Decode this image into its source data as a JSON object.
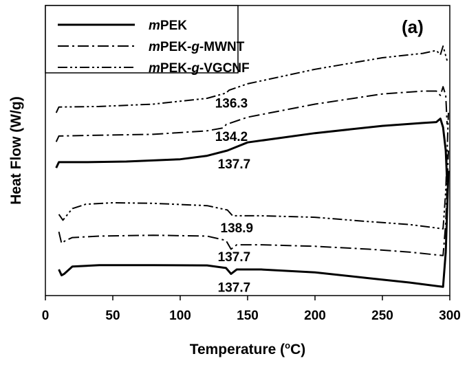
{
  "chart_data": {
    "type": "line",
    "panel_label": "(a)",
    "xlabel": "Temperature (",
    "xlabel_sup": "o",
    "xlabel_suffix": "C)",
    "ylabel": "Heat Flow (W/g)",
    "xlim": [
      0,
      300
    ],
    "xticks": [
      0,
      50,
      100,
      150,
      200,
      250,
      300
    ],
    "yticks_shown": false,
    "ylim": [
      0,
      10
    ],
    "legend": {
      "position": "top-left",
      "entries": [
        {
          "italic": "m",
          "text": "PEK",
          "style": "solid"
        },
        {
          "italic": "m",
          "text": "PEK-",
          "italic2": "g",
          "text2": "-MWNT",
          "style": "dash-dot"
        },
        {
          "italic": "m",
          "text": "PEK-",
          "italic2": "g",
          "text2": "-VGCNF",
          "style": "dash-dot-dot"
        }
      ]
    },
    "series": [
      {
        "legend_index": 0,
        "segment": "heating",
        "x": [
          8,
          10,
          30,
          60,
          100,
          120,
          135,
          137.7,
          150,
          200,
          250,
          280,
          290,
          293,
          295,
          297,
          298
        ],
        "y": [
          4.4,
          4.6,
          4.6,
          4.62,
          4.7,
          4.82,
          5.0,
          5.05,
          5.28,
          5.6,
          5.85,
          5.95,
          5.98,
          6.1,
          5.8,
          5.0,
          3.9
        ]
      },
      {
        "legend_index": 1,
        "segment": "heating",
        "x": [
          8,
          10,
          30,
          80,
          120,
          132,
          134.2,
          150,
          200,
          250,
          280,
          290,
          293,
          295,
          297,
          298
        ],
        "y": [
          5.3,
          5.5,
          5.52,
          5.56,
          5.68,
          5.78,
          5.9,
          6.15,
          6.6,
          6.95,
          7.05,
          7.05,
          6.9,
          7.2,
          6.9,
          5.9
        ]
      },
      {
        "legend_index": 2,
        "segment": "heating",
        "x": [
          8,
          10,
          40,
          80,
          120,
          134,
          136.3,
          150,
          200,
          250,
          280,
          290,
          293,
          295,
          298
        ],
        "y": [
          6.3,
          6.5,
          6.52,
          6.6,
          6.8,
          6.98,
          7.08,
          7.3,
          7.8,
          8.2,
          8.35,
          8.45,
          8.3,
          8.6,
          8.1
        ]
      },
      {
        "legend_index": 0,
        "segment": "cooling",
        "x": [
          10,
          12,
          14,
          20,
          40,
          80,
          120,
          134,
          137.7,
          142,
          160,
          200,
          240,
          270,
          295,
          297,
          299
        ],
        "y": [
          0.9,
          0.7,
          0.75,
          1.0,
          1.05,
          1.05,
          1.04,
          0.95,
          0.75,
          0.9,
          0.9,
          0.8,
          0.6,
          0.45,
          0.3,
          1.5,
          4.3
        ]
      },
      {
        "legend_index": 1,
        "segment": "cooling",
        "x": [
          10,
          12,
          15,
          20,
          40,
          80,
          120,
          134,
          137.7,
          142,
          160,
          200,
          240,
          270,
          295,
          297,
          299
        ],
        "y": [
          2.2,
          1.8,
          1.9,
          2.0,
          2.05,
          2.08,
          2.05,
          1.9,
          1.6,
          1.75,
          1.75,
          1.7,
          1.6,
          1.5,
          1.38,
          2.5,
          5.0
        ]
      },
      {
        "legend_index": 2,
        "segment": "cooling",
        "x": [
          10,
          13,
          20,
          30,
          50,
          80,
          120,
          135,
          138.9,
          145,
          160,
          200,
          240,
          270,
          295,
          297,
          299
        ],
        "y": [
          2.8,
          2.6,
          3.0,
          3.15,
          3.2,
          3.18,
          3.1,
          2.95,
          2.75,
          2.75,
          2.75,
          2.7,
          2.55,
          2.45,
          2.3,
          3.6,
          6.3
        ]
      }
    ],
    "annotations": [
      {
        "text": "136.3",
        "x": 138,
        "y": 6.65
      },
      {
        "text": "134.2",
        "x": 138,
        "y": 5.5
      },
      {
        "text": "137.7",
        "x": 140,
        "y": 4.55
      },
      {
        "text": "138.9",
        "x": 142,
        "y": 2.35
      },
      {
        "text": "137.7",
        "x": 140,
        "y": 1.35
      },
      {
        "text": "137.7",
        "x": 140,
        "y": 0.3
      }
    ]
  }
}
